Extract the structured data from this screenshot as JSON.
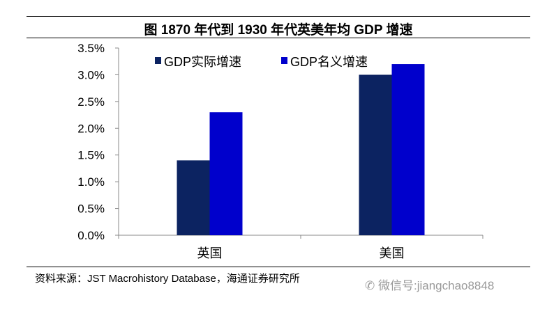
{
  "chart_data": {
    "type": "bar",
    "title": "图 1870 年代到 1930 年代英美年均 GDP 增速",
    "categories": [
      "英国",
      "美国"
    ],
    "series": [
      {
        "name": "GDP实际增速",
        "values": [
          1.4,
          3.0
        ],
        "color": "#0c2361"
      },
      {
        "name": "GDP名义增速",
        "values": [
          2.3,
          3.2
        ],
        "color": "#0000cc"
      }
    ],
    "yticks": [
      "0.0%",
      "0.5%",
      "1.0%",
      "1.5%",
      "2.0%",
      "2.5%",
      "3.0%",
      "3.5%"
    ],
    "ylim": [
      0,
      3.5
    ],
    "yunit": "%",
    "grid": false,
    "legend": "top"
  },
  "source": "资料来源：JST Macrohistory Database，海通证券研究所",
  "watermark": "微信号:jiangchao8848"
}
